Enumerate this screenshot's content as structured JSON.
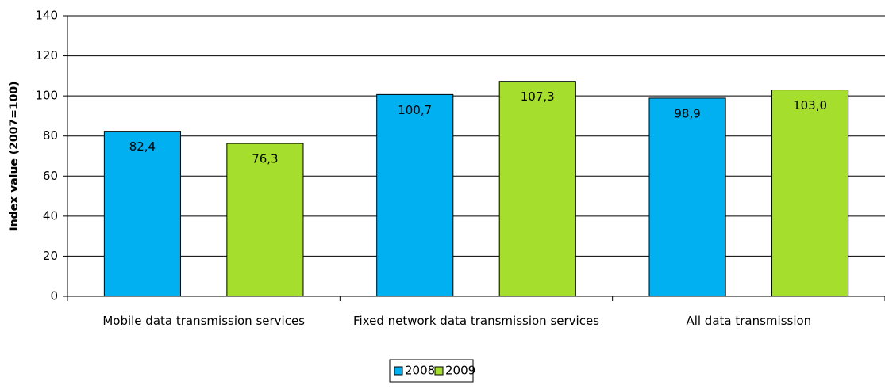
{
  "chart_data": {
    "type": "bar",
    "y_axis_label": "Index value (2007=100)",
    "categories": [
      "Mobile data transmission services",
      "Fixed network data transmission services",
      "All data transmission"
    ],
    "series": [
      {
        "name": "2008",
        "color": "#00B0F0",
        "values": [
          82.4,
          100.7,
          98.9
        ],
        "value_labels": [
          "82,4",
          "100,7",
          "98,9"
        ]
      },
      {
        "name": "2009",
        "color": "#A6DE2E",
        "values": [
          76.3,
          107.3,
          103.0
        ],
        "value_labels": [
          "76,3",
          "107,3",
          "103,0"
        ]
      }
    ],
    "ylim": [
      0,
      140
    ],
    "yticks": [
      0,
      20,
      40,
      60,
      80,
      100,
      120,
      140
    ],
    "grid": true,
    "legend": "bottom"
  }
}
